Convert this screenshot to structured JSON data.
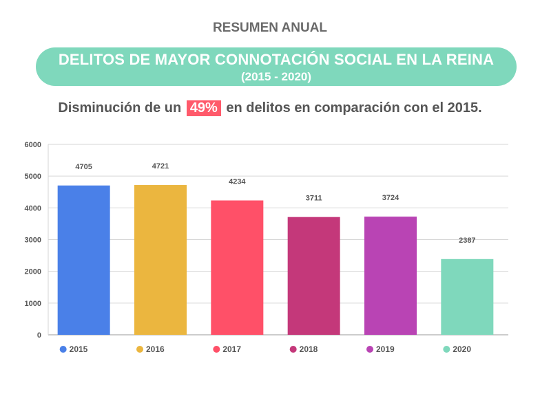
{
  "header": {
    "kicker": "RESUMEN ANUAL",
    "title": "DELITOS DE MAYOR CONNOTACIÓN SOCIAL EN LA REINA",
    "subtitle": "(2015 - 2020)"
  },
  "summary": {
    "prefix": "Disminución de un",
    "highlight": "49%",
    "suffix": "en delitos en comparación con el 2015."
  },
  "colors": {
    "banner": "#7fd8bc",
    "highlight": "#ff5a6b"
  },
  "chart_data": {
    "type": "bar",
    "categories": [
      "2015",
      "2016",
      "2017",
      "2018",
      "2019",
      "2020"
    ],
    "values": [
      4705,
      4721,
      4234,
      3711,
      3724,
      2387
    ],
    "colors": [
      "#4a80e8",
      "#ebb63f",
      "#ff5068",
      "#c4387a",
      "#b944b4",
      "#7fd8bc"
    ],
    "ylim": [
      0,
      6000
    ],
    "yticks": [
      "0",
      "1000",
      "2000",
      "3000",
      "4000",
      "5000",
      "6000"
    ],
    "grid": true,
    "legend_position": "bottom"
  }
}
